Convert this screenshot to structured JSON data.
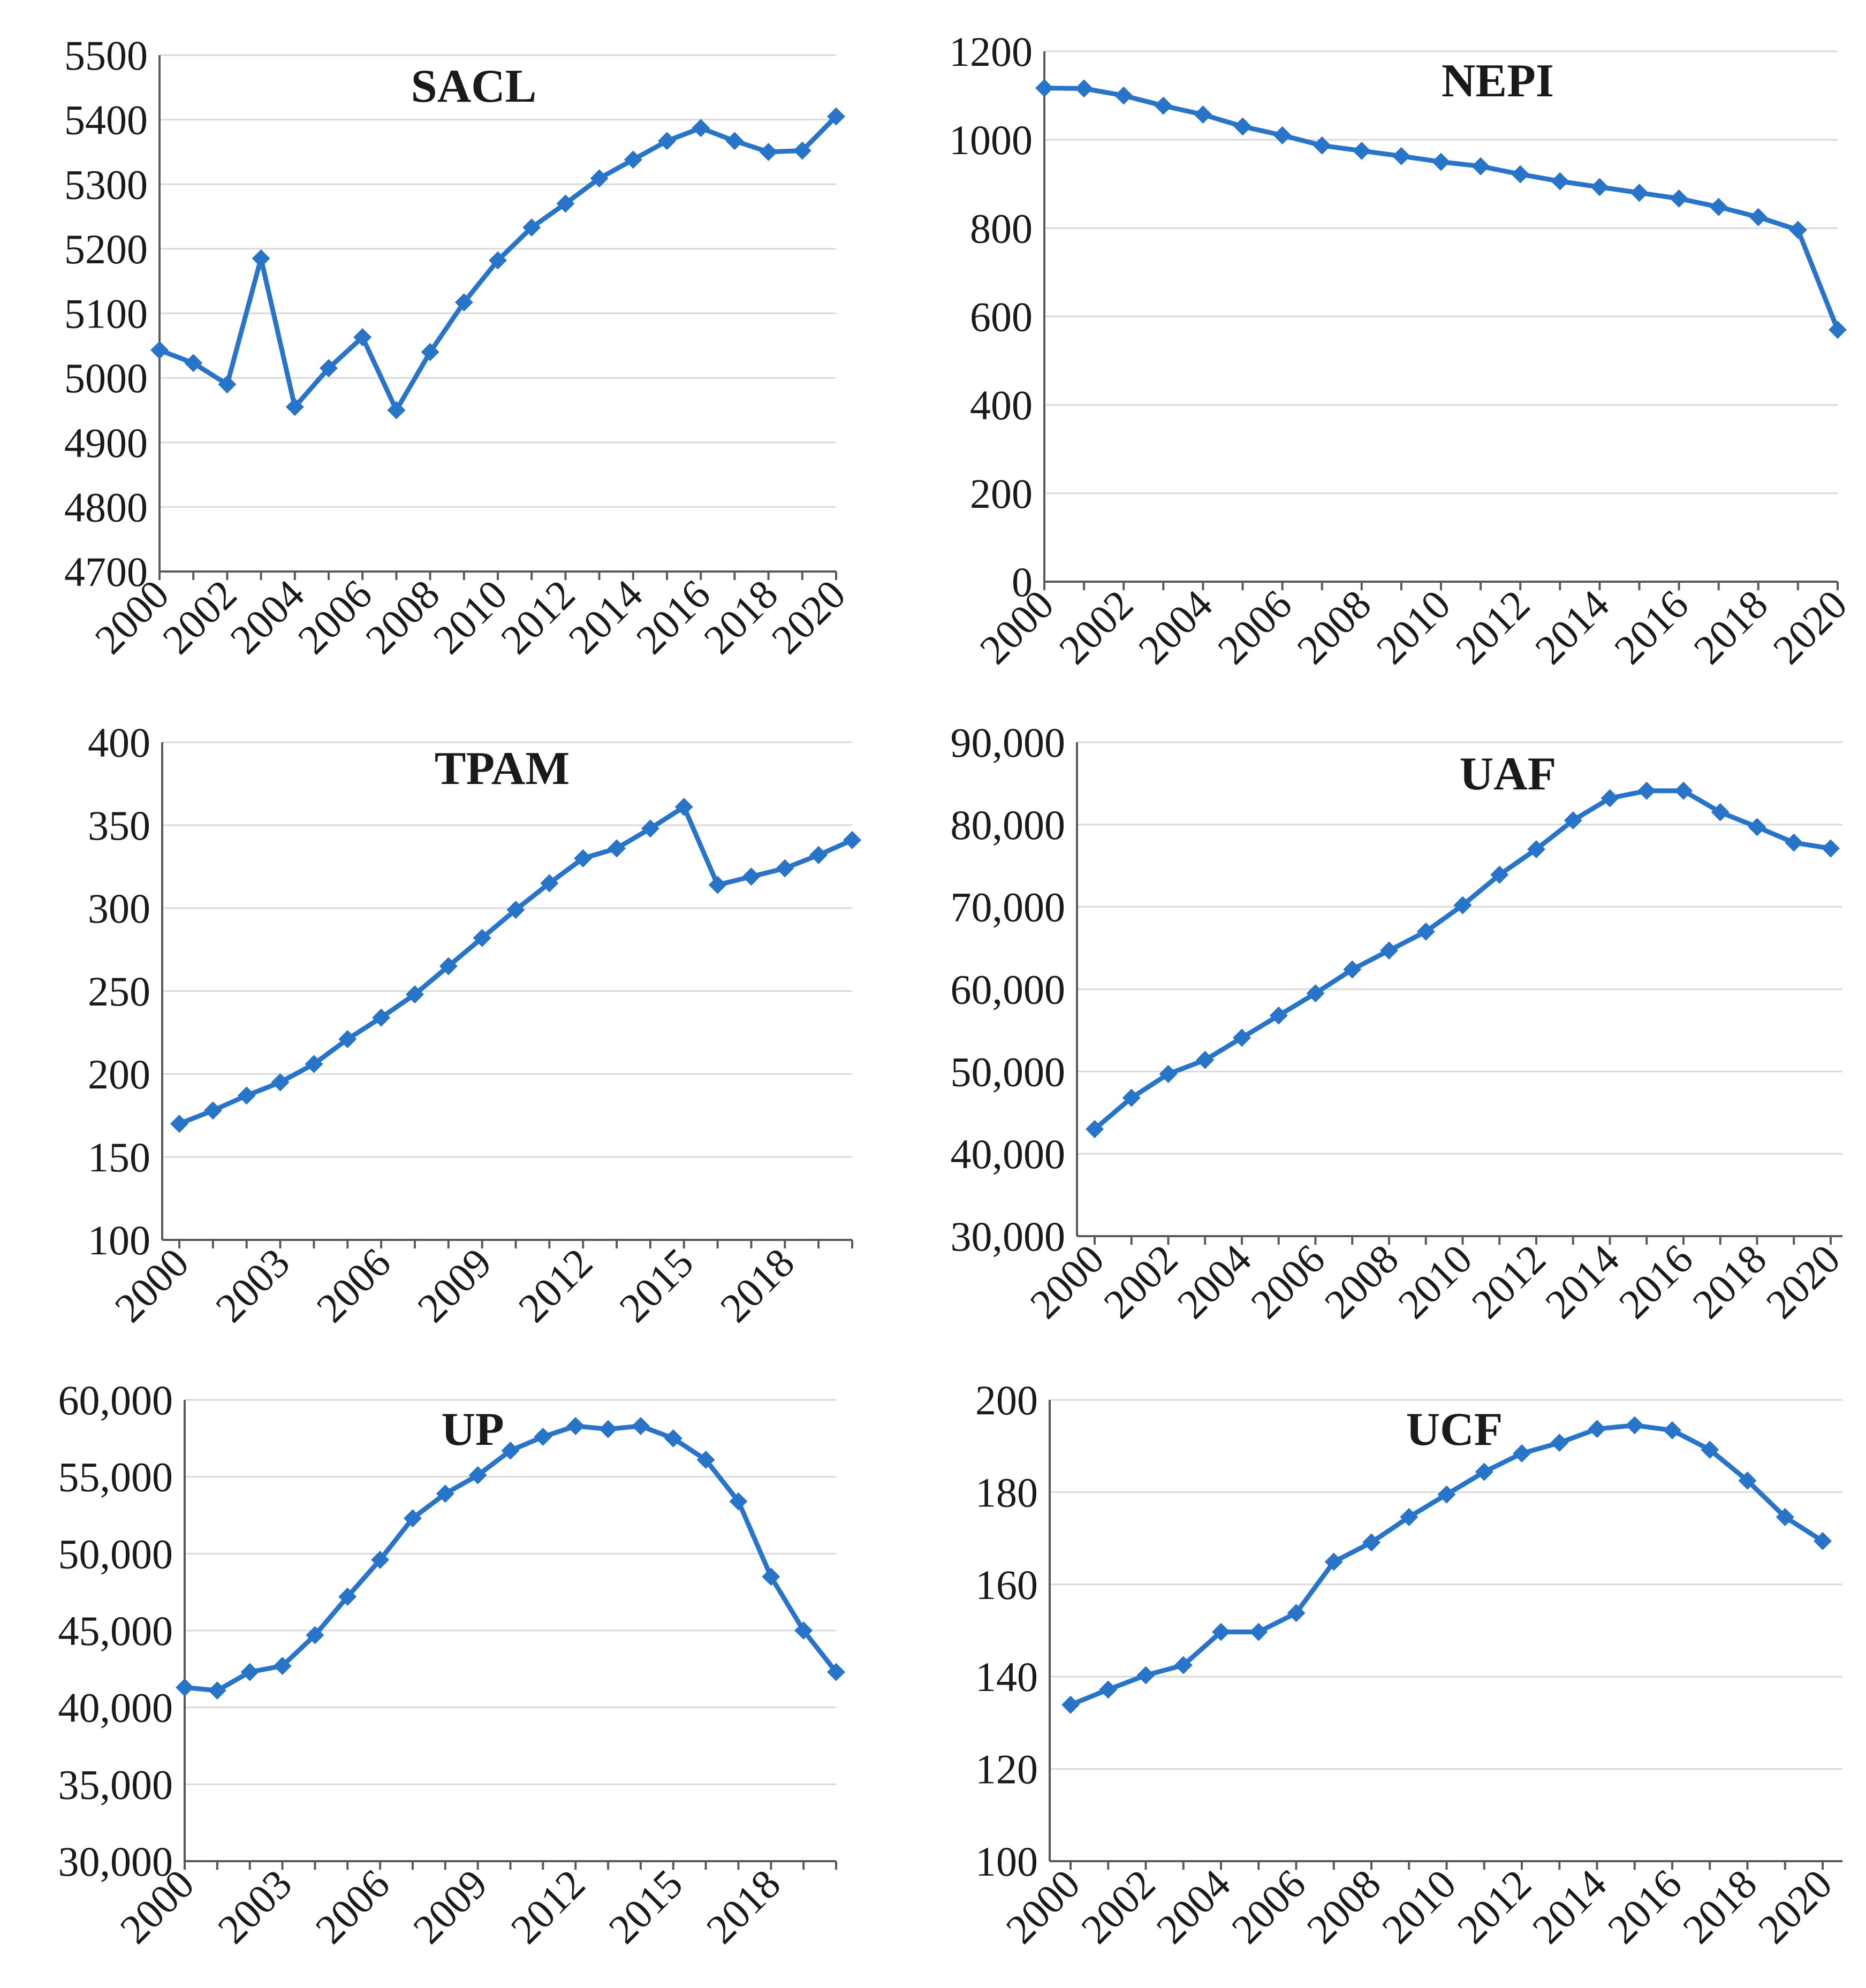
{
  "colors": {
    "series": "#2874C8"
  },
  "chart_data": [
    {
      "type": "line",
      "title": "SACL",
      "categories": [
        "2000",
        "2001",
        "2002",
        "2003",
        "2004",
        "2005",
        "2006",
        "2007",
        "2008",
        "2009",
        "2010",
        "2011",
        "2012",
        "2013",
        "2014",
        "2015",
        "2016",
        "2017",
        "2018",
        "2019",
        "2020"
      ],
      "x_tick_labels": [
        "2000",
        "2002",
        "2004",
        "2006",
        "2008",
        "2010",
        "2012",
        "2014",
        "2016",
        "2018",
        "2020"
      ],
      "values": [
        5043,
        5023,
        4990,
        5185,
        4955,
        5015,
        5063,
        4950,
        5040,
        5117,
        5182,
        5233,
        5270,
        5309,
        5338,
        5367,
        5387,
        5367,
        5350,
        5352,
        5405
      ],
      "ylim": [
        4700,
        5500
      ],
      "y_tick_labels": [
        "4700",
        "4800",
        "4900",
        "5000",
        "5100",
        "5200",
        "5300",
        "5400",
        "5500"
      ],
      "xlabel": "",
      "ylabel": "",
      "grid": true,
      "marker": "diamond"
    },
    {
      "type": "line",
      "title": "NEPI",
      "categories": [
        "2000",
        "2001",
        "2002",
        "2003",
        "2004",
        "2005",
        "2006",
        "2007",
        "2008",
        "2009",
        "2010",
        "2011",
        "2012",
        "2013",
        "2014",
        "2015",
        "2016",
        "2017",
        "2018",
        "2019",
        "2020"
      ],
      "x_tick_labels": [
        "2000",
        "2002",
        "2004",
        "2006",
        "2008",
        "2010",
        "2012",
        "2014",
        "2016",
        "2018",
        "2020"
      ],
      "values": [
        1117,
        1116,
        1100,
        1077,
        1057,
        1030,
        1010,
        987,
        975,
        963,
        950,
        940,
        922,
        906,
        893,
        880,
        867,
        848,
        825,
        796,
        570
      ],
      "ylim": [
        0,
        1200
      ],
      "y_tick_labels": [
        "0",
        "200",
        "400",
        "600",
        "800",
        "1000",
        "1200"
      ],
      "xlabel": "",
      "ylabel": "",
      "grid": true,
      "marker": "diamond"
    },
    {
      "type": "line",
      "title": "TPAM",
      "categories": [
        "2000",
        "2001",
        "2002",
        "2003",
        "2004",
        "2005",
        "2006",
        "2007",
        "2008",
        "2009",
        "2010",
        "2011",
        "2012",
        "2013",
        "2014",
        "2015",
        "2016",
        "2017",
        "2018",
        "2019",
        "2020"
      ],
      "x_tick_labels": [
        "2000",
        "2003",
        "2006",
        "2009",
        "2012",
        "2015",
        "2018"
      ],
      "values": [
        170,
        178,
        187,
        195,
        206,
        221,
        234,
        248,
        265,
        282,
        299,
        315,
        330,
        336,
        348,
        361,
        314,
        319,
        324,
        332,
        341
      ],
      "ylim": [
        100,
        400
      ],
      "y_tick_labels": [
        "100",
        "150",
        "200",
        "250",
        "300",
        "350",
        "400"
      ],
      "xlabel": "",
      "ylabel": "",
      "grid": true,
      "marker": "diamond"
    },
    {
      "type": "line",
      "title": "UAF",
      "categories": [
        "2000",
        "2001",
        "2002",
        "2003",
        "2004",
        "2005",
        "2006",
        "2007",
        "2008",
        "2009",
        "2010",
        "2011",
        "2012",
        "2013",
        "2014",
        "2015",
        "2016",
        "2017",
        "2018",
        "2019",
        "2020"
      ],
      "x_tick_labels": [
        "2000",
        "2002",
        "2004",
        "2006",
        "2008",
        "2010",
        "2012",
        "2014",
        "2016",
        "2018",
        "2020"
      ],
      "values": [
        43000,
        46800,
        49700,
        51400,
        54100,
        56800,
        59500,
        62400,
        64700,
        67000,
        70200,
        73900,
        77000,
        80500,
        83200,
        84100,
        84100,
        81500,
        79700,
        77800,
        77100
      ],
      "ylim": [
        30000,
        90000
      ],
      "y_tick_labels": [
        "30,000",
        "40,000",
        "50,000",
        "60,000",
        "70,000",
        "80,000",
        "90,000"
      ],
      "xlabel": "",
      "ylabel": "",
      "grid": true,
      "marker": "diamond"
    },
    {
      "type": "line",
      "title": "UP",
      "categories": [
        "2000",
        "2001",
        "2002",
        "2003",
        "2004",
        "2005",
        "2006",
        "2007",
        "2008",
        "2009",
        "2010",
        "2011",
        "2012",
        "2013",
        "2014",
        "2015",
        "2016",
        "2017",
        "2018",
        "2019",
        "2020"
      ],
      "x_tick_labels": [
        "2000",
        "2003",
        "2006",
        "2009",
        "2012",
        "2015",
        "2018"
      ],
      "values": [
        41300,
        41100,
        42300,
        42700,
        44700,
        47200,
        49600,
        52300,
        53900,
        55100,
        56700,
        57600,
        58300,
        58100,
        58300,
        57500,
        56100,
        53400,
        48500,
        45000,
        42300
      ],
      "ylim": [
        30000,
        60000
      ],
      "y_tick_labels": [
        "30,000",
        "35,000",
        "40,000",
        "45,000",
        "50,000",
        "55,000",
        "60,000"
      ],
      "xlabel": "",
      "ylabel": "",
      "grid": true,
      "marker": "diamond"
    },
    {
      "type": "line",
      "title": "UCF",
      "categories": [
        "2000",
        "2001",
        "2002",
        "2003",
        "2004",
        "2005",
        "2006",
        "2007",
        "2008",
        "2009",
        "2010",
        "2011",
        "2012",
        "2013",
        "2014",
        "2015",
        "2016",
        "2017",
        "2018",
        "2019",
        "2020"
      ],
      "x_tick_labels": [
        "2000",
        "2002",
        "2004",
        "2006",
        "2008",
        "2010",
        "2012",
        "2014",
        "2016",
        "2018",
        "2020"
      ],
      "values": [
        133.9,
        137.2,
        140.3,
        142.5,
        149.7,
        149.7,
        153.8,
        164.9,
        169.1,
        174.6,
        179.5,
        184.4,
        188.4,
        190.7,
        193.7,
        194.5,
        193.4,
        189.2,
        182.5,
        174.6,
        169.4
      ],
      "ylim": [
        100,
        200
      ],
      "y_tick_labels": [
        "100",
        "120",
        "140",
        "160",
        "180",
        "200"
      ],
      "xlabel": "",
      "ylabel": "",
      "grid": true,
      "marker": "diamond"
    }
  ]
}
